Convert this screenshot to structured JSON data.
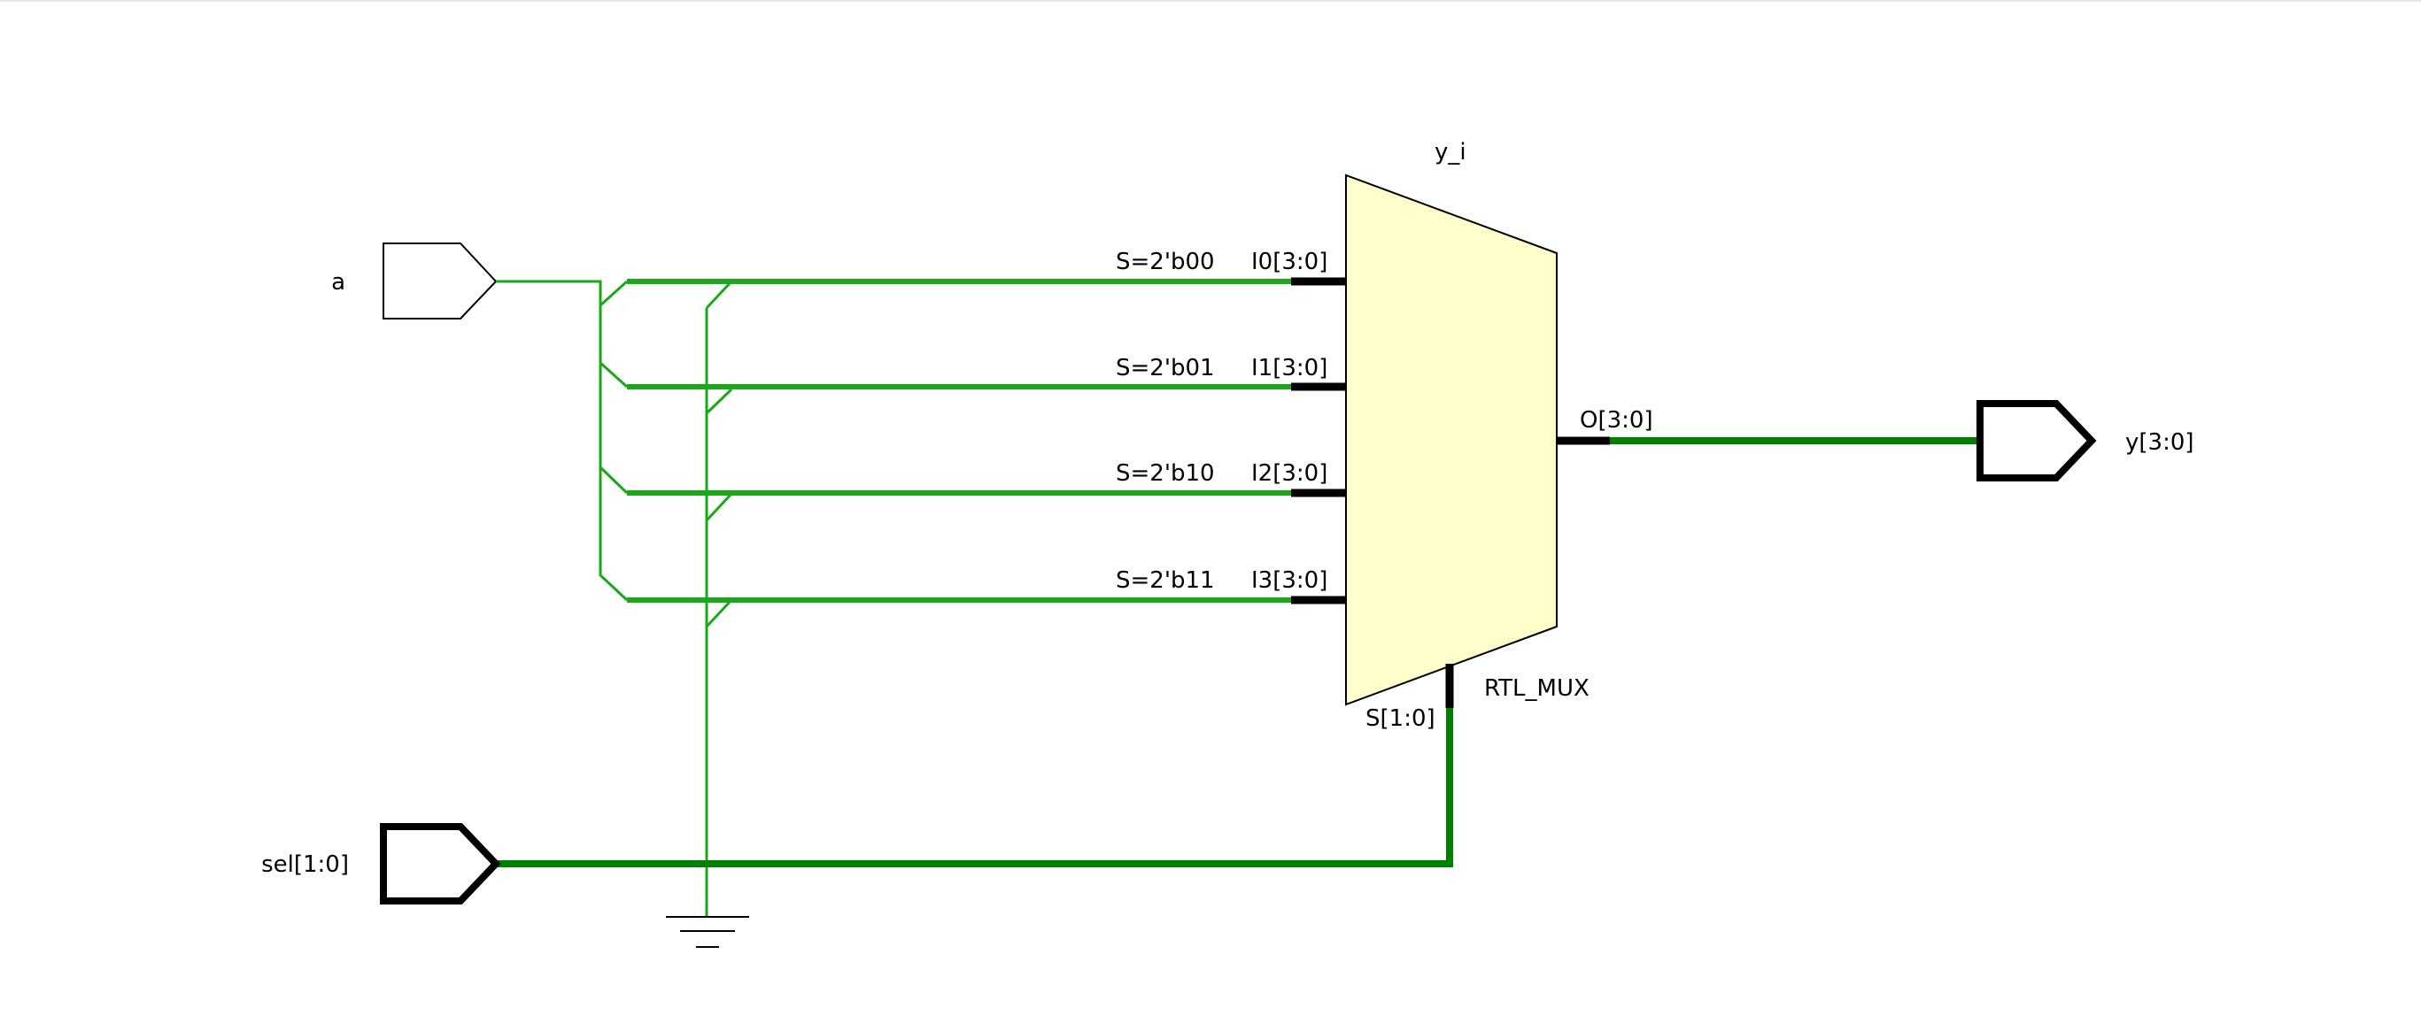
{
  "colors": {
    "wire": "#1aa81a",
    "bus": "#008000",
    "pin": "#000000",
    "mux_fill": "#ffffcc",
    "outline": "#000000",
    "background": "#ffffff"
  },
  "ports": {
    "a": "a",
    "sel": "sel[1:0]",
    "y": "y[3:0]"
  },
  "mux": {
    "instance_name": "y_i",
    "cell_type": "RTL_MUX",
    "inputs": [
      {
        "pin": "I0[3:0]",
        "select": "S=2'b00"
      },
      {
        "pin": "I1[3:0]",
        "select": "S=2'b01"
      },
      {
        "pin": "I2[3:0]",
        "select": "S=2'b10"
      },
      {
        "pin": "I3[3:0]",
        "select": "S=2'b11"
      }
    ],
    "output_pin": "O[3:0]",
    "select_pin": "S[1:0]"
  },
  "symbols": {
    "ground": "ground-icon"
  }
}
